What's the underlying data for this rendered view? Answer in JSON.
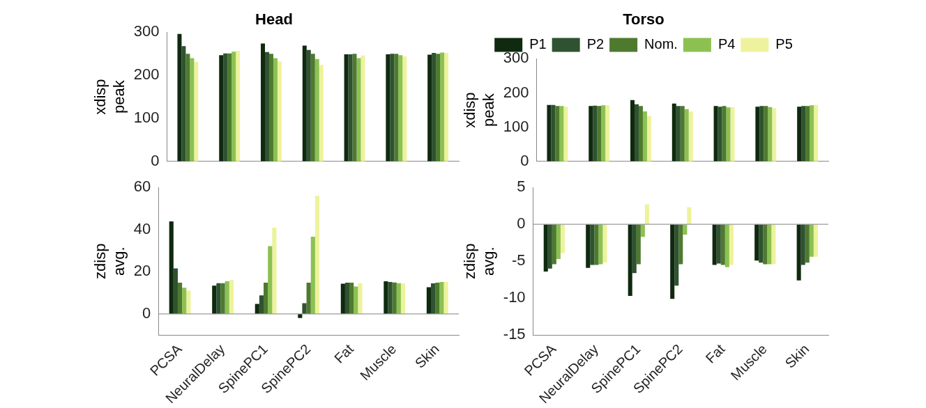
{
  "chart_data": [
    {
      "type": "bar",
      "title": "Head",
      "ylabel": "xdisp peak",
      "categories": [
        null,
        null,
        null,
        null,
        null,
        null,
        null
      ],
      "tick_labels": "y",
      "grid": false,
      "legend": false,
      "ylim": [
        0,
        300
      ],
      "yticks": [
        0,
        100,
        200,
        300
      ],
      "series": [
        {
          "color": "#0f2a0f",
          "values": [
            296,
            247,
            274,
            269,
            249,
            249,
            248
          ]
        },
        {
          "color": "#2f5230",
          "values": [
            268,
            251,
            254,
            259,
            249,
            250,
            252
          ]
        },
        {
          "color": "#4e7a2e",
          "values": [
            250,
            251,
            250,
            250,
            250,
            250,
            250
          ]
        },
        {
          "color": "#8cc152",
          "values": [
            240,
            255,
            240,
            238,
            240,
            247,
            253
          ]
        },
        {
          "color": "#eef29c",
          "values": [
            231,
            257,
            232,
            224,
            246,
            244,
            252
          ]
        }
      ]
    },
    {
      "type": "bar",
      "title": "Torso",
      "ylabel": "xdisp peak",
      "categories": [
        null,
        null,
        null,
        null,
        null,
        null,
        null
      ],
      "tick_labels": "y",
      "grid": false,
      "legend": "top",
      "ylim": [
        0,
        300
      ],
      "yticks": [
        0,
        100,
        200,
        300
      ],
      "series": [
        {
          "name": "P1",
          "color": "#0f2a0f",
          "values": [
            165,
            162,
            179,
            169,
            162,
            160,
            160
          ]
        },
        {
          "name": "P2",
          "color": "#2f5230",
          "values": [
            165,
            163,
            167,
            162,
            160,
            162,
            162
          ]
        },
        {
          "name": "Nom.",
          "color": "#4e7a2e",
          "values": [
            162,
            162,
            162,
            162,
            162,
            162,
            162
          ]
        },
        {
          "name": "P4",
          "color": "#8cc152",
          "values": [
            162,
            164,
            146,
            153,
            158,
            159,
            164
          ]
        },
        {
          "name": "P5",
          "color": "#eef29c",
          "values": [
            160,
            164,
            133,
            146,
            159,
            156,
            165
          ]
        }
      ]
    },
    {
      "type": "bar",
      "ylabel": "zdisp avg.",
      "categories": [
        "PCSA",
        "NeuralDelay",
        "SpinePC1",
        "SpinePC2",
        "Fat",
        "Muscle",
        "Skin"
      ],
      "grid": false,
      "legend": false,
      "ylim": [
        -10,
        60
      ],
      "yticks": [
        0,
        20,
        40,
        60
      ],
      "ref_lines": [
        {
          "axis": "y",
          "value": 0
        }
      ],
      "series": [
        {
          "color": "#0f2a0f",
          "values": [
            43.9,
            13.4,
            4.8,
            -1.9,
            14.3,
            15.5,
            12.7
          ]
        },
        {
          "color": "#2f5230",
          "values": [
            21.6,
            14.6,
            8.8,
            5.1,
            14.8,
            15.2,
            14.5
          ]
        },
        {
          "color": "#4e7a2e",
          "values": [
            14.8,
            14.6,
            14.8,
            14.8,
            14.8,
            14.9,
            14.8
          ]
        },
        {
          "color": "#8cc152",
          "values": [
            12.4,
            15.5,
            32.2,
            36.6,
            13,
            14.6,
            15.2
          ]
        },
        {
          "color": "#eef29c",
          "values": [
            11,
            16.1,
            40.9,
            56,
            14.6,
            14.5,
            15.2
          ]
        }
      ]
    },
    {
      "type": "bar",
      "ylabel": "zdisp avg.",
      "categories": [
        "PCSA",
        "NeuralDelay",
        "SpinePC1",
        "SpinePC2",
        "Fat",
        "Muscle",
        "Skin"
      ],
      "grid": false,
      "legend": false,
      "ylim": [
        -15,
        5
      ],
      "yticks": [
        -15,
        -10,
        -5,
        0,
        5
      ],
      "ref_lines": [
        {
          "axis": "y",
          "value": 0
        }
      ],
      "series": [
        {
          "color": "#0f2a0f",
          "values": [
            -6.4,
            -5.9,
            -9.7,
            -10.1,
            -5.5,
            -4.9,
            -7.6
          ]
        },
        {
          "color": "#2f5230",
          "values": [
            -6,
            -5.5,
            -6.6,
            -8.3,
            -5.3,
            -5.2,
            -5.5
          ]
        },
        {
          "color": "#4e7a2e",
          "values": [
            -5.4,
            -5.5,
            -5.4,
            -5.4,
            -5.5,
            -5.4,
            -5.2
          ]
        },
        {
          "color": "#8cc152",
          "values": [
            -4.7,
            -5.4,
            -1.7,
            -1.4,
            -5.8,
            -5.4,
            -4.4
          ]
        },
        {
          "color": "#eef29c",
          "values": [
            -3.9,
            -5.2,
            2.7,
            2.3,
            -5.5,
            -5.4,
            -4.4
          ]
        }
      ]
    }
  ]
}
